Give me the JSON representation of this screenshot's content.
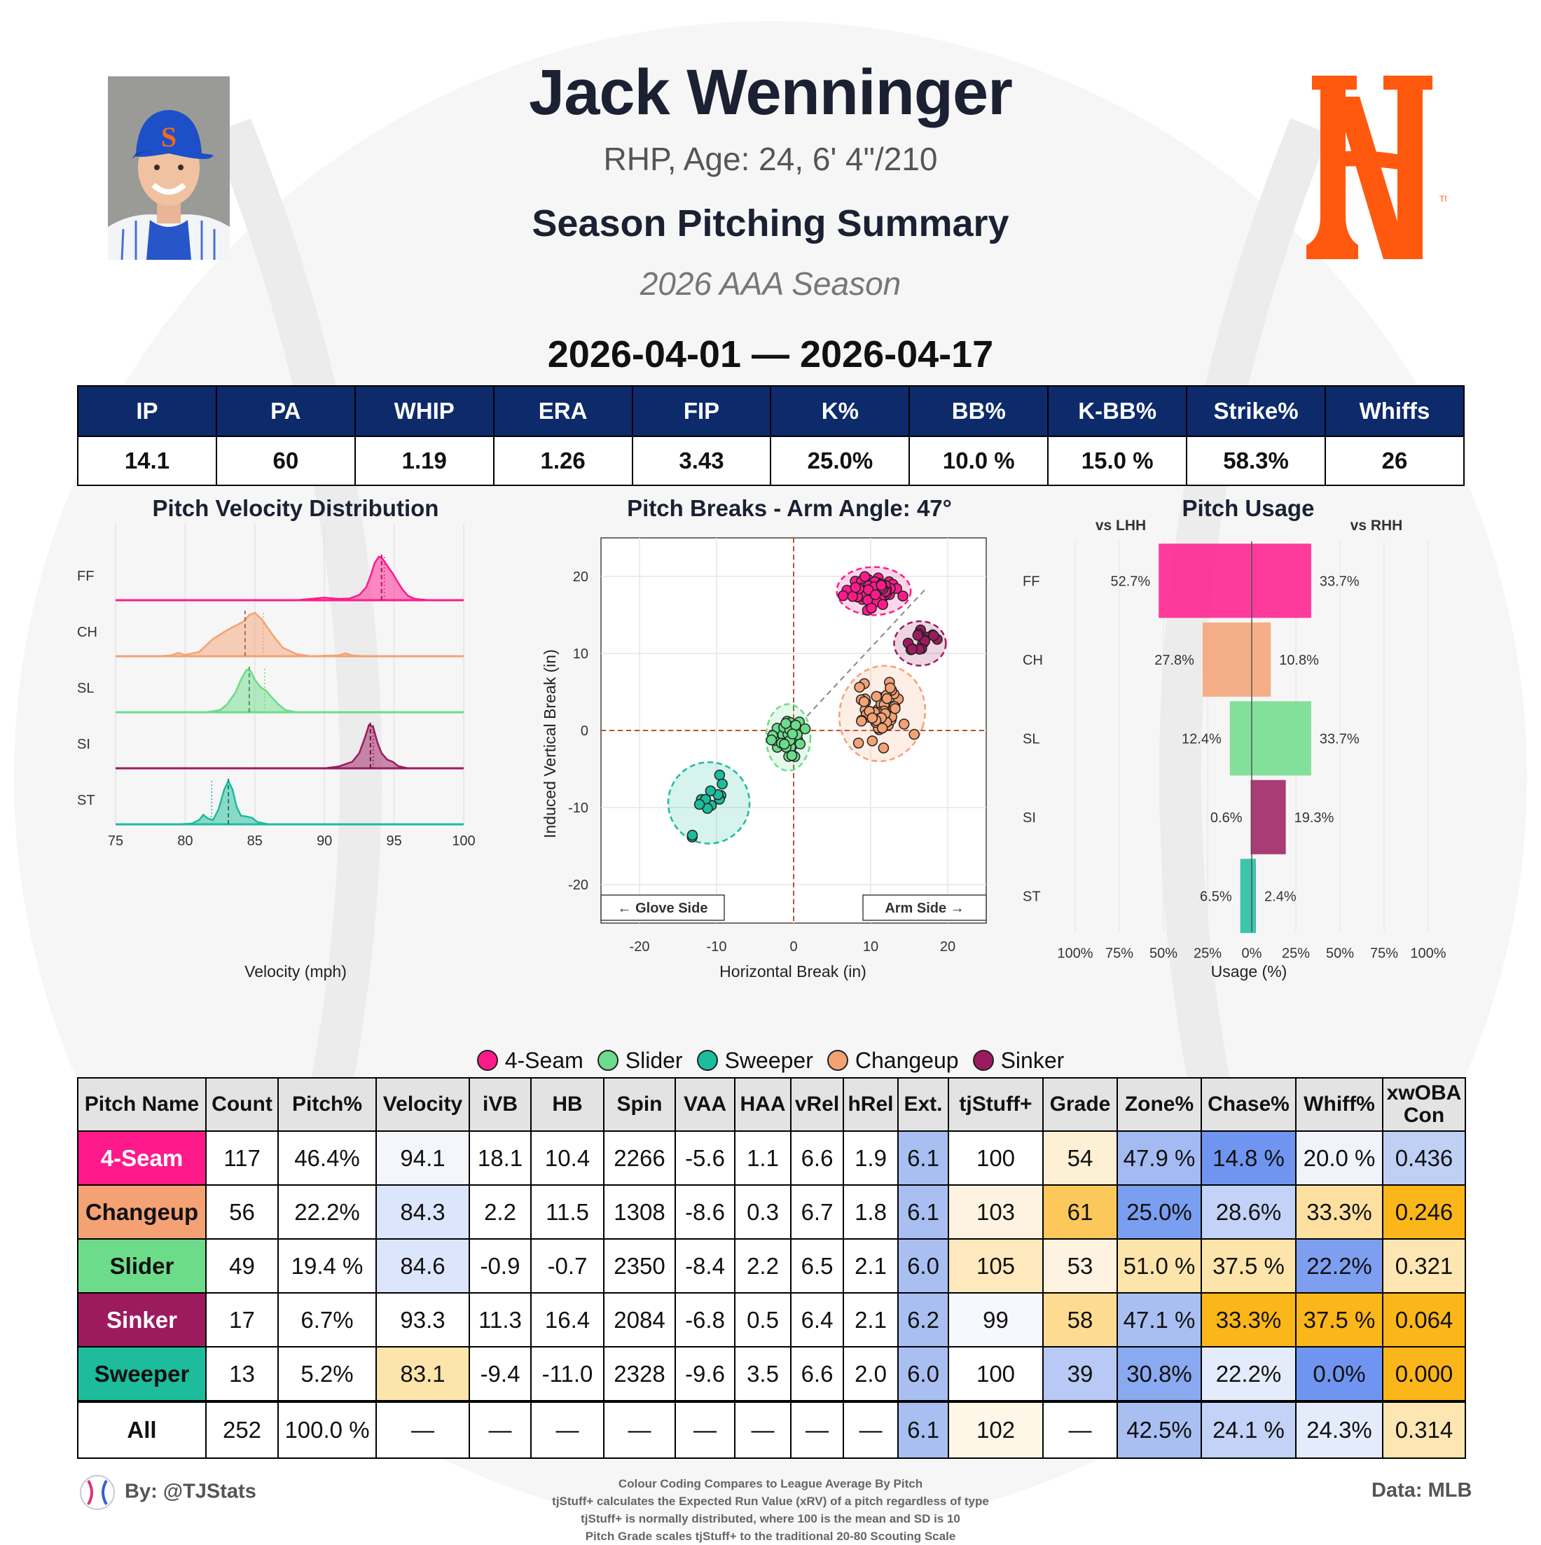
{
  "header": {
    "name": "Jack Wenninger",
    "bio": "RHP, Age: 24, 6' 4\"/210",
    "subtitle": "Season Pitching Summary",
    "season": "2026 AAA Season",
    "date_range": "2026-04-01 — 2026-04-17"
  },
  "summary_table": {
    "headers": [
      "IP",
      "PA",
      "WHIP",
      "ERA",
      "FIP",
      "K%",
      "BB%",
      "K-BB%",
      "Strike%",
      "Whiffs"
    ],
    "values": [
      "14.1",
      "60",
      "1.19",
      "1.26",
      "3.43",
      "25.0%",
      "10.0 %",
      "15.0 %",
      "58.3%",
      "26"
    ]
  },
  "pitch_colors": {
    "FF": "#ff1a8c",
    "CH": "#f4a274",
    "SL": "#6ddc8a",
    "SI": "#9c1b5e",
    "ST": "#1cbc9c"
  },
  "chart_data": [
    {
      "type": "area",
      "title": "Pitch Velocity Distribution",
      "xlabel": "Velocity (mph)",
      "ylabel": "",
      "xlim": [
        75,
        100
      ],
      "xticks": [
        "75",
        "80",
        "85",
        "90",
        "95",
        "100"
      ],
      "series": [
        {
          "name": "FF",
          "mean": 94.1,
          "league_avg": 94.3,
          "color": "#ff1a8c",
          "velocity": [
            88.0,
            89.0,
            90.0,
            91.0,
            91.8,
            92.5,
            93.0,
            93.3,
            93.6,
            93.9,
            94.1,
            94.3,
            94.6,
            94.9,
            95.2,
            95.6,
            96.0,
            96.5,
            97.5
          ],
          "density": [
            0.0,
            0.03,
            0.06,
            0.03,
            0.04,
            0.12,
            0.3,
            0.55,
            0.85,
            1.0,
            0.98,
            0.9,
            0.75,
            0.62,
            0.45,
            0.25,
            0.1,
            0.03,
            0.0
          ]
        },
        {
          "name": "CH",
          "mean": 84.3,
          "league_avg": 85.6,
          "color": "#f4a274",
          "velocity": [
            78.0,
            79.0,
            79.5,
            80.0,
            81.0,
            81.5,
            82.0,
            83.0,
            83.6,
            84.2,
            84.6,
            85.0,
            85.5,
            86.0,
            86.5,
            87.0,
            88.0,
            89.0,
            91.0,
            91.5,
            92.0,
            93.0
          ],
          "density": [
            0.0,
            0.02,
            0.08,
            0.03,
            0.1,
            0.25,
            0.4,
            0.6,
            0.7,
            0.8,
            0.95,
            1.0,
            0.85,
            0.62,
            0.4,
            0.2,
            0.05,
            0.0,
            0.02,
            0.07,
            0.02,
            0.0
          ]
        },
        {
          "name": "SL",
          "mean": 84.6,
          "league_avg": 85.7,
          "color": "#6ddc8a",
          "velocity": [
            81.5,
            82.5,
            83.0,
            83.6,
            84.0,
            84.4,
            84.7,
            85.0,
            85.4,
            85.8,
            86.2,
            86.7,
            87.2,
            88.0
          ],
          "density": [
            0.0,
            0.05,
            0.18,
            0.45,
            0.75,
            0.98,
            0.95,
            0.75,
            0.58,
            0.5,
            0.35,
            0.18,
            0.05,
            0.0
          ]
        },
        {
          "name": "SI",
          "mean": 93.3,
          "league_avg": 93.5,
          "color": "#9c1b5e",
          "velocity": [
            90.0,
            91.0,
            92.0,
            92.5,
            92.9,
            93.2,
            93.5,
            93.8,
            94.1,
            94.5,
            94.9,
            95.3,
            96.0
          ],
          "density": [
            0.0,
            0.04,
            0.15,
            0.35,
            0.7,
            1.0,
            0.95,
            0.6,
            0.35,
            0.2,
            0.15,
            0.05,
            0.0
          ]
        },
        {
          "name": "ST",
          "mean": 83.1,
          "league_avg": 81.9,
          "color": "#1cbc9c",
          "velocity": [
            79.5,
            80.5,
            81.0,
            81.3,
            81.6,
            82.0,
            82.4,
            82.8,
            83.1,
            83.4,
            83.7,
            84.0,
            84.4,
            84.8,
            85.2,
            86.0
          ],
          "density": [
            0.0,
            0.02,
            0.1,
            0.22,
            0.14,
            0.1,
            0.35,
            0.8,
            1.0,
            0.8,
            0.4,
            0.2,
            0.18,
            0.15,
            0.05,
            0.0
          ]
        }
      ]
    },
    {
      "type": "scatter",
      "title": "Pitch Breaks - Arm Angle: 47°",
      "xlabel": "Horizontal Break (in)",
      "ylabel": "Induced Vertical Break (in)",
      "xlim": [
        -25,
        25
      ],
      "ylim": [
        -25,
        25
      ],
      "xticks": [
        "-20",
        "-10",
        "0",
        "10",
        "20"
      ],
      "yticks": [
        "20",
        "10",
        "0",
        "-10",
        "-20"
      ],
      "arm_angle_deg": 47,
      "glove_side_label": "← Glove Side",
      "arm_side_label": "Arm Side →",
      "series": [
        {
          "name": "FF",
          "color": "#ff1a8c",
          "center": [
            10.4,
            18.1
          ],
          "spread": [
            2.0,
            1.3
          ],
          "count": 117,
          "seed": 11
        },
        {
          "name": "CH",
          "color": "#f4a274",
          "center": [
            11.5,
            2.2
          ],
          "spread": [
            2.3,
            2.6
          ],
          "count": 56,
          "seed": 23
        },
        {
          "name": "SL",
          "color": "#6ddc8a",
          "center": [
            -0.7,
            -0.9
          ],
          "spread": [
            1.2,
            1.8
          ],
          "count": 49,
          "seed": 37
        },
        {
          "name": "SI",
          "color": "#9c1b5e",
          "center": [
            16.4,
            11.3
          ],
          "spread": [
            1.4,
            1.2
          ],
          "count": 17,
          "seed": 51
        },
        {
          "name": "ST",
          "color": "#1cbc9c",
          "center": [
            -11.0,
            -9.4
          ],
          "spread": [
            2.2,
            2.2
          ],
          "count": 13,
          "seed": 67
        }
      ]
    },
    {
      "type": "bar",
      "title": "Pitch Usage",
      "xlabel": "Usage (%)",
      "left_label": "vs LHH",
      "right_label": "vs RHH",
      "categories": [
        "FF",
        "CH",
        "SL",
        "SI",
        "ST"
      ],
      "xticks": [
        "100%",
        "75%",
        "50%",
        "25%",
        "0%",
        "25%",
        "50%",
        "75%",
        "100%"
      ],
      "series": [
        {
          "name": "vs LHH",
          "values": [
            52.7,
            27.8,
            12.4,
            0.6,
            6.5
          ],
          "labels": [
            "52.7%",
            "27.8%",
            "12.4%",
            "0.6%",
            "6.5%"
          ]
        },
        {
          "name": "vs RHH",
          "values": [
            33.7,
            10.8,
            33.7,
            19.3,
            2.4
          ],
          "labels": [
            "33.7%",
            "10.8%",
            "33.7%",
            "19.3%",
            "2.4%"
          ]
        }
      ]
    }
  ],
  "legend": [
    {
      "label": "4-Seam",
      "color": "#ff1a8c"
    },
    {
      "label": "Slider",
      "color": "#6ddc8a"
    },
    {
      "label": "Sweeper",
      "color": "#1cbc9c"
    },
    {
      "label": "Changeup",
      "color": "#f4a274"
    },
    {
      "label": "Sinker",
      "color": "#9c1b5e"
    }
  ],
  "pitch_table": {
    "headers": [
      "Pitch Name",
      "Count",
      "Pitch%",
      "Velocity",
      "iVB",
      "HB",
      "Spin",
      "VAA",
      "HAA",
      "vRel",
      "hRel",
      "Ext.",
      "tjStuff+",
      "Grade",
      "Zone%",
      "Chase%",
      "Whiff%",
      "xwOBA Con"
    ],
    "rows": [
      {
        "cells": [
          "4-Seam",
          "117",
          "46.4%",
          "94.1",
          "18.1",
          "10.4",
          "2266",
          "-5.6",
          "1.1",
          "6.6",
          "1.9",
          "6.1",
          "100",
          "54",
          "47.9 %",
          "14.8 %",
          "20.0 %",
          "0.436"
        ],
        "name_bg": "#ff1a8c",
        "name_fg": "#ffffff",
        "bgs": {
          "3": "#f4f6fc",
          "11": "#a9bff2",
          "12": "#ffffff",
          "13": "#fdf0d5",
          "14": "#a4baf2",
          "15": "#6f95f0",
          "16": "#f1f3fa",
          "17": "#c0d0f4"
        }
      },
      {
        "cells": [
          "Changeup",
          "56",
          "22.2%",
          "84.3",
          "2.2",
          "11.5",
          "1308",
          "-8.6",
          "0.3",
          "6.7",
          "1.8",
          "6.1",
          "103",
          "61",
          "25.0%",
          "28.6%",
          "33.3%",
          "0.246"
        ],
        "name_bg": "#f4a274",
        "name_fg": "#111111",
        "bgs": {
          "3": "#dbe5fb",
          "11": "#a9bff2",
          "12": "#fdf3e0",
          "13": "#fcc85c",
          "14": "#7a9ef0",
          "15": "#c3d2f6",
          "16": "#fde0a0",
          "17": "#fbb619"
        }
      },
      {
        "cells": [
          "Slider",
          "49",
          "19.4 %",
          "84.6",
          "-0.9",
          "-0.7",
          "2350",
          "-8.4",
          "2.2",
          "6.5",
          "2.1",
          "6.0",
          "105",
          "53",
          "51.0 %",
          "37.5 %",
          "22.2%",
          "0.321"
        ],
        "name_bg": "#6ddc8a",
        "name_fg": "#111111",
        "bgs": {
          "3": "#dbe5fb",
          "11": "#a9bff2",
          "12": "#fde9bd",
          "13": "#fef3e0",
          "14": "#fde4aa",
          "15": "#fde4aa",
          "16": "#7e9ff0",
          "17": "#fde6b2"
        }
      },
      {
        "cells": [
          "Sinker",
          "17",
          "6.7%",
          "93.3",
          "11.3",
          "16.4",
          "2084",
          "-6.8",
          "0.5",
          "6.4",
          "2.1",
          "6.2",
          "99",
          "58",
          "47.1 %",
          "33.3%",
          "37.5 %",
          "0.064"
        ],
        "name_bg": "#9c1b5e",
        "name_fg": "#ffffff",
        "bgs": {
          "3": "#ffffff",
          "11": "#a9bff2",
          "12": "#f6f8fd",
          "13": "#fddc92",
          "14": "#a9bff2",
          "15": "#fbb619",
          "16": "#fbb619",
          "17": "#fbb619"
        }
      },
      {
        "cells": [
          "Sweeper",
          "13",
          "5.2%",
          "83.1",
          "-9.4",
          "-11.0",
          "2328",
          "-9.6",
          "3.5",
          "6.6",
          "2.0",
          "6.0",
          "100",
          "39",
          "30.8%",
          "22.2%",
          "0.0%",
          "0.000"
        ],
        "name_bg": "#1cbc9c",
        "name_fg": "#111111",
        "bgs": {
          "3": "#fde4aa",
          "11": "#a9bff2",
          "12": "#ffffff",
          "13": "#b7c9f4",
          "14": "#89a9f0",
          "15": "#e4ebfa",
          "16": "#6f95f0",
          "17": "#fbb619"
        }
      },
      {
        "cells": [
          "All",
          "252",
          "100.0 %",
          "—",
          "—",
          "—",
          "—",
          "—",
          "—",
          "—",
          "—",
          "6.1",
          "102",
          "—",
          "42.5%",
          "24.1 %",
          "24.3%",
          "0.314"
        ],
        "name_bg": "#ffffff",
        "name_fg": "#111111",
        "bgs": {
          "11": "#a9bff2",
          "12": "#fef6e6",
          "14": "#a9bff2",
          "15": "#c3d2f6",
          "16": "#e4ebfa",
          "17": "#fde6b2"
        }
      }
    ]
  },
  "footer": {
    "credit": "By: @TJStats",
    "data_source": "Data: MLB",
    "notes": [
      "Colour Coding Compares to League Average By Pitch",
      "tjStuff+ calculates the Expected Run Value (xRV) of a pitch regardless of type",
      "tjStuff+ is normally distributed, where 100 is the mean and SD is 10",
      "Pitch Grade scales tjStuff+ to the traditional 20-80 Scouting Scale"
    ]
  }
}
